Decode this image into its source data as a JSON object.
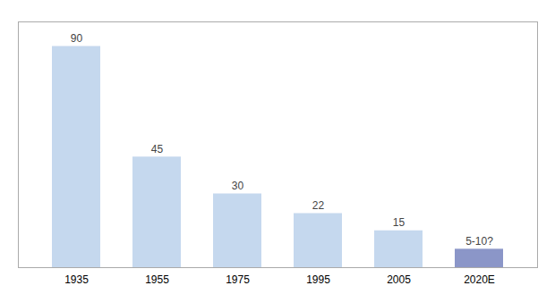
{
  "chart_data": {
    "type": "bar",
    "categories": [
      "1935",
      "1955",
      "1975",
      "1995",
      "2005",
      "2020E"
    ],
    "values": [
      90,
      45,
      30,
      22,
      15,
      7.5
    ],
    "value_labels": [
      "90",
      "45",
      "30",
      "22",
      "15",
      "5-10?"
    ],
    "data_labels": true,
    "colors": [
      "#c5d8ee",
      "#c5d8ee",
      "#c5d8ee",
      "#c5d8ee",
      "#c5d8ee",
      "#8b96c8"
    ],
    "ylim": [
      0,
      100
    ],
    "grid": false,
    "tick_labels": "x"
  }
}
